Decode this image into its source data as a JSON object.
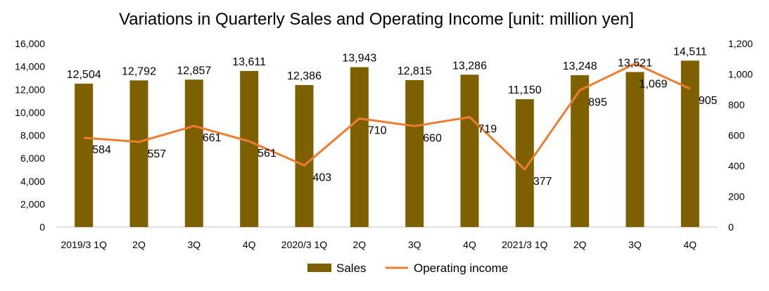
{
  "chart_data": {
    "type": "bar+line",
    "title": "Variations in Quarterly Sales and Operating Income [unit: million yen]",
    "categories": [
      "2019/3 1Q",
      "2Q",
      "3Q",
      "4Q",
      "2020/3 1Q",
      "2Q",
      "3Q",
      "4Q",
      "2021/3 1Q",
      "2Q",
      "3Q",
      "4Q"
    ],
    "series": [
      {
        "name": "Sales",
        "type": "bar",
        "axis": "left",
        "color": "#7F6000",
        "values": [
          12504,
          12792,
          12857,
          13611,
          12386,
          13943,
          12815,
          13286,
          11150,
          13248,
          13521,
          14511
        ],
        "labels": [
          "12,504",
          "12,792",
          "12,857",
          "13,611",
          "12,386",
          "13,943",
          "12,815",
          "13,286",
          "11,150",
          "13,248",
          "13,521",
          "14,511"
        ]
      },
      {
        "name": "Operating income",
        "type": "line",
        "axis": "right",
        "color": "#ED7D31",
        "values": [
          584,
          557,
          661,
          561,
          403,
          710,
          660,
          719,
          377,
          895,
          1069,
          905
        ],
        "labels": [
          "584",
          "557",
          "661",
          "561",
          "403",
          "710",
          "660",
          "719",
          "377",
          "895",
          "1,069",
          "905"
        ]
      }
    ],
    "y_left": {
      "min": 0,
      "max": 16000,
      "ticks": [
        0,
        2000,
        4000,
        6000,
        8000,
        10000,
        12000,
        14000,
        16000
      ],
      "tick_labels": [
        "0",
        "2,000",
        "4,000",
        "6,000",
        "8,000",
        "10,000",
        "12,000",
        "14,000",
        "16,000"
      ]
    },
    "y_right": {
      "min": 0,
      "max": 1200,
      "ticks": [
        0,
        200,
        400,
        600,
        800,
        1000,
        1200
      ],
      "tick_labels": [
        "0",
        "200",
        "400",
        "600",
        "800",
        "1,000",
        "1,200"
      ]
    },
    "grid": false,
    "legend_position": "bottom"
  }
}
